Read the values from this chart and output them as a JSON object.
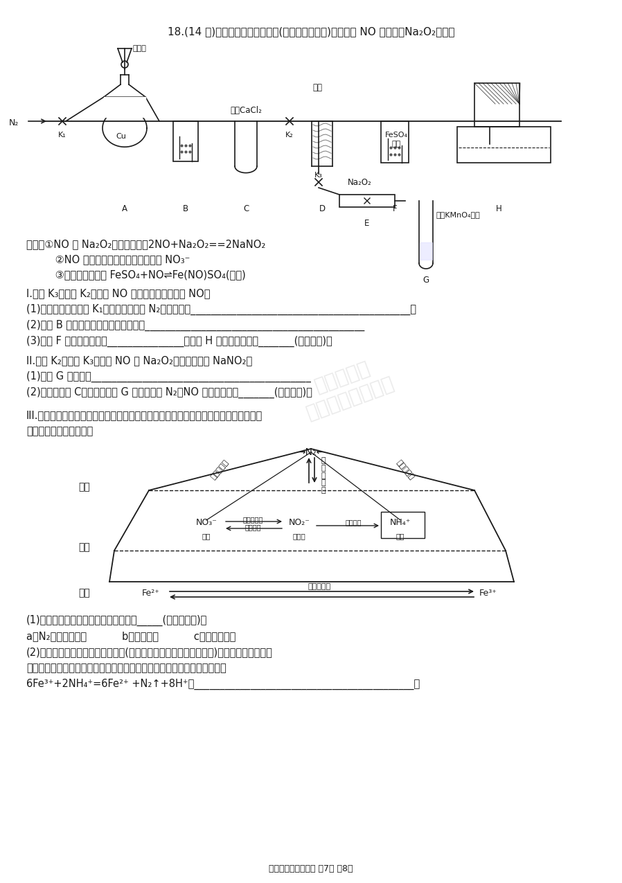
{
  "bg": "#ffffff",
  "tc": "#1a1a1a",
  "title": "18.(14 分)研究小组设计如下实验(夹持装置已略去)分别探究 NO 与铜粉、Na₂O₂的反应",
  "known": [
    "已知：①NO 与 Na₂O₂可发生反应：2NO+Na₂O₂==2NaNO₂",
    "         ②NO 能被酸性高锶酸鐐溶液氧化为 NO₃⁻",
    "         ③溶液中存在平衡 FeSO₄+NO⇌Fe(NO)SO₄(棕色)"
  ],
  "sI_title": "I.关闭 K₃，打开 K₂，探究 NO 与铜粉的反应并检验 NO。",
  "sI": [
    "(1)反应开始前，打开 K₁，通入一段时间 N₂，其目的是___________________________________________。",
    "(2)装置 B 中盛放的试剂为水，其作用是___________________________________________",
    "(3)装置 F 中的实验现象为_______________。装置 H 中收集的气体为_______(填化学式)。"
  ],
  "sII_title": "II.关闭 K₂，打开 K₃，探究 NO 与 Na₂O₂的反应并制备 NaNO₂。",
  "sII": [
    "(1)装置 G 的作用是___________________________________________",
    "(2)若省略装置 C，则进入装置 G 中的气体除 N₂、NO 外，可能还有_______(填化学式)。"
  ],
  "sIII_1": "III.细菌可以促使铁、氮两种元素进行氧化还原反应，并耦合两种元素的循环。耦合循环",
  "sIII_2": "中的部分转化如图所示。",
  "sIII_q": [
    "(1)图所示氮循环中，属于氮的固定的有_____(填字母序号)。",
    "a．N₂转化为氨态氮           b．瞄化过程           c．反瞄化过程",
    "(2)土壤中的铁循环可用于水体脱氮(脱氮是指将氮元素从水体中除去)，结合图中的转化，",
    "土壤中的铁循环脱除水体中氨态氮和犄态氮的原理用离子方程式表示如下：",
    "6Fe³⁺+2NH₄⁺=6Fe²⁺ +N₂↑+8H⁺和___________________________________________。"
  ],
  "footer": "高一年级化学科试卷 第7页 八8页"
}
